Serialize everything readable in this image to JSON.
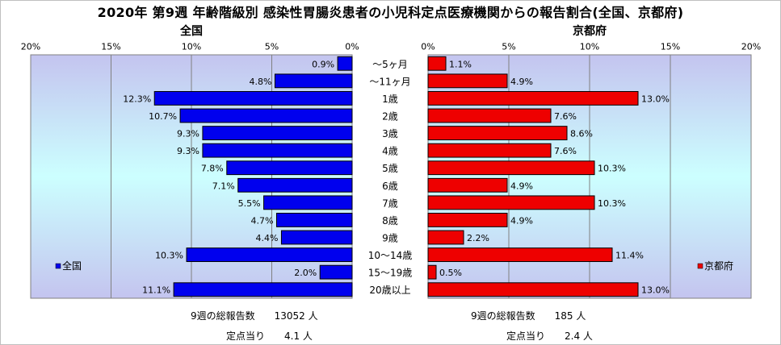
{
  "title": "2020年 第9週 年齢階級別 感染性胃腸炎患者の小児科定点医療機関からの報告割合(全国、京都府)",
  "colors": {
    "national_bar": "#0000ee",
    "kyoto_bar": "#ee0000",
    "plot_gradient_top": "#c4c4ef",
    "plot_gradient_mid": "#ccffff",
    "plot_gradient_bottom": "#c4c4ef"
  },
  "chart_data": [
    {
      "type": "bar",
      "orientation": "horizontal",
      "direction": "right-to-left",
      "title": "全国",
      "legend": "全国",
      "legend_position": "left",
      "xlim": [
        0,
        20
      ],
      "x_ticks": [
        "0%",
        "5%",
        "10%",
        "15%",
        "20%"
      ],
      "categories": [
        "～5ヶ月",
        "～11ヶ月",
        "1歳",
        "2歳",
        "3歳",
        "4歳",
        "5歳",
        "6歳",
        "7歳",
        "8歳",
        "9歳",
        "10～14歳",
        "15～19歳",
        "20歳以上"
      ],
      "values": [
        0.9,
        4.8,
        12.3,
        10.7,
        9.3,
        9.3,
        7.8,
        7.1,
        5.5,
        4.7,
        4.4,
        10.3,
        2.0,
        11.1
      ],
      "labels": [
        "0.9%",
        "4.8%",
        "12.3%",
        "10.7%",
        "9.3%",
        "9.3%",
        "7.8%",
        "7.1%",
        "5.5%",
        "4.7%",
        "4.4%",
        "10.3%",
        "2.0%",
        "11.1%"
      ]
    },
    {
      "type": "bar",
      "orientation": "horizontal",
      "direction": "left-to-right",
      "title": "京都府",
      "legend": "京都府",
      "legend_position": "right",
      "xlim": [
        0,
        20
      ],
      "x_ticks": [
        "0%",
        "5%",
        "10%",
        "15%",
        "20%"
      ],
      "categories": [
        "～5ヶ月",
        "～11ヶ月",
        "1歳",
        "2歳",
        "3歳",
        "4歳",
        "5歳",
        "6歳",
        "7歳",
        "8歳",
        "9歳",
        "10～14歳",
        "15～19歳",
        "20歳以上"
      ],
      "values": [
        1.1,
        4.9,
        13.0,
        7.6,
        8.6,
        7.6,
        10.3,
        4.9,
        10.3,
        4.9,
        2.2,
        11.4,
        0.5,
        13.0
      ],
      "labels": [
        "1.1%",
        "4.9%",
        "13.0%",
        "7.6%",
        "8.6%",
        "7.6%",
        "10.3%",
        "4.9%",
        "10.3%",
        "4.9%",
        "2.2%",
        "11.4%",
        "0.5%",
        "13.0%"
      ]
    }
  ],
  "summary": {
    "national": {
      "total_line": "9週の総報告数　　13052 人",
      "per_site_line": "定点当り　　4.1 人"
    },
    "kyoto": {
      "total_line": "9週の総報告数　　185 人",
      "per_site_line": "定点当り　　2.4 人"
    }
  }
}
